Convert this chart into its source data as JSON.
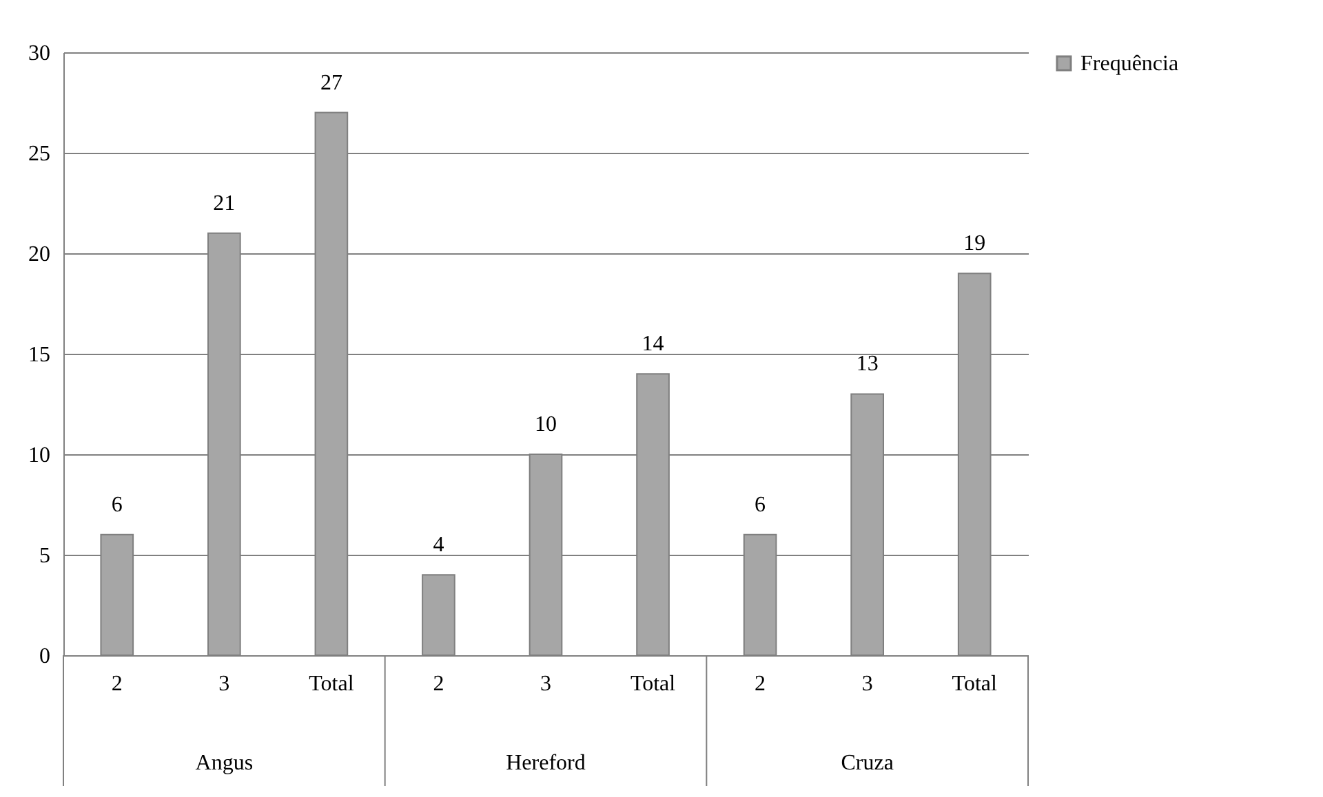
{
  "chart_data": {
    "type": "bar",
    "categories": [
      "2",
      "3",
      "Total",
      "2",
      "3",
      "Total",
      "2",
      "3",
      "Total"
    ],
    "series": [
      {
        "name": "Frequência",
        "color": "#a6a6a6",
        "values": [
          6,
          21,
          27,
          4,
          10,
          14,
          6,
          13,
          19
        ]
      }
    ],
    "annotations": [
      "Angus",
      "Hereford",
      "Cruza"
    ],
    "ylim": [
      0,
      30
    ],
    "yticks": [
      0,
      5,
      10,
      15,
      20,
      25,
      30
    ],
    "grid": "y",
    "legend": "right",
    "data_labels": true
  }
}
